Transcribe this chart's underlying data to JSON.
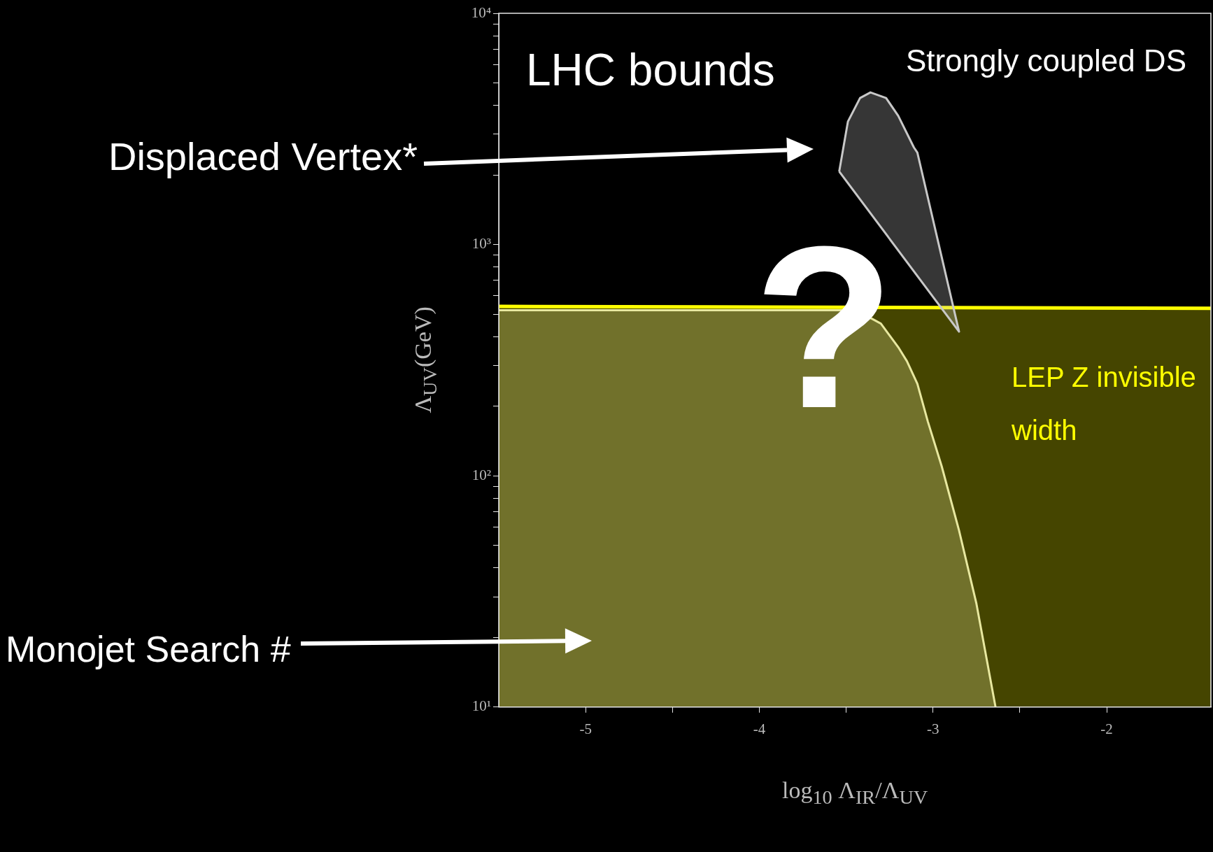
{
  "chart_data": {
    "type": "area",
    "xlabel": "log$_{10}$ Λ$_{IR}$/Λ$_{UV}$",
    "ylabel": "Λ$_{UV}$(GeV)",
    "annotations": [
      "LHC bounds",
      "Strongly coupled DS",
      "?",
      "Displaced Vertex*",
      "Monojet Search #"
    ],
    "series": [
      {
        "name": "LEP Z invisible width",
        "color": "#ffff00",
        "x": [
          -5.5,
          -1.4
        ],
        "values": [
          540,
          530
        ]
      },
      {
        "color": "#e8e8a0",
        "x": [
          -5.5,
          -3.5,
          -3.4,
          -3.3,
          -3.2,
          -3.15,
          -3.09,
          -3.03,
          -2.95,
          -2.85,
          -2.75,
          -2.64
        ],
        "values": [
          520,
          520,
          500,
          455,
          360,
          313,
          250,
          172,
          110,
          58,
          28,
          10
        ]
      },
      {
        "color": "#c8c8c8",
        "x": [
          -3.54,
          -3.49,
          -3.42,
          -3.36,
          -3.27,
          -3.2,
          -3.11,
          -3.09,
          -2.85,
          -3.54
        ],
        "values": [
          2070,
          3400,
          4300,
          4550,
          4300,
          3600,
          2630,
          2500,
          420,
          2070
        ]
      }
    ],
    "xlim": [
      -5.5,
      -1.4
    ],
    "ylim": [
      10,
      10000
    ],
    "xticks": [
      -5,
      -4,
      -3,
      -2,
      {
        "value": -4.5,
        "label": null
      },
      {
        "value": -3.5,
        "label": null
      },
      {
        "value": -2.5,
        "label": null
      }
    ],
    "yticks": [
      {
        "value": 10,
        "label": "10¹"
      },
      {
        "value": 100,
        "label": "10²"
      },
      {
        "value": 1000,
        "label": "10³"
      },
      {
        "value": 10000,
        "label": "10⁴"
      },
      {
        "value": 20,
        "label": null
      },
      {
        "value": 30,
        "label": null
      },
      {
        "value": 40,
        "label": null
      },
      {
        "value": 50,
        "label": null
      },
      {
        "value": 60,
        "label": null
      },
      {
        "value": 70,
        "label": null
      },
      {
        "value": 80,
        "label": null
      },
      {
        "value": 90,
        "label": null
      },
      {
        "value": 200,
        "label": null
      },
      {
        "value": 300,
        "label": null
      },
      {
        "value": 400,
        "label": null
      },
      {
        "value": 500,
        "label": null
      },
      {
        "value": 600,
        "label": null
      },
      {
        "value": 700,
        "label": null
      },
      {
        "value": 800,
        "label": null
      },
      {
        "value": 900,
        "label": null
      },
      {
        "value": 2000,
        "label": null
      },
      {
        "value": 3000,
        "label": null
      },
      {
        "value": 4000,
        "label": null
      },
      {
        "value": 5000,
        "label": null
      },
      {
        "value": 6000,
        "label": null
      },
      {
        "value": 7000,
        "label": null
      },
      {
        "value": 8000,
        "label": null
      },
      {
        "value": 9000,
        "label": null
      }
    ],
    "log": "y",
    "marker": "none"
  }
}
